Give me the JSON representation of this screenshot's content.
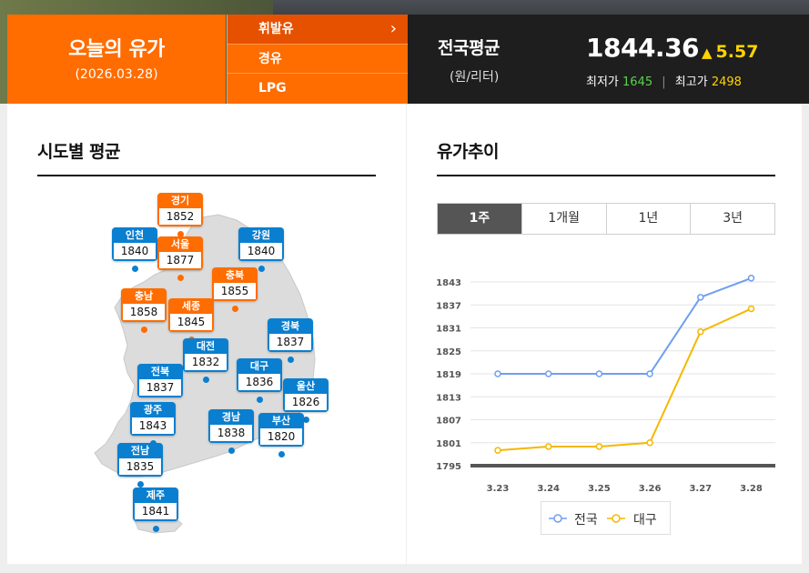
{
  "today": {
    "title": "오늘의 유가",
    "date": "(2026.03.28)"
  },
  "fuel_tabs": [
    {
      "label": "휘발유",
      "active": true
    },
    {
      "label": "경유",
      "active": false
    },
    {
      "label": "LPG",
      "active": false
    }
  ],
  "fuel_chevron": "›",
  "national": {
    "title": "전국평균",
    "unit": "(원/리터)",
    "price": "1844.36",
    "change_icon": "up-triangle-icon",
    "change": "5.57",
    "min_label": "최저가",
    "min_value": "1645",
    "max_label": "최고가",
    "max_value": "2498"
  },
  "regional": {
    "title": "시도별 평균",
    "regions": [
      {
        "name": "경기",
        "value": "1852",
        "color": "orange"
      },
      {
        "name": "인천",
        "value": "1840",
        "color": "blue"
      },
      {
        "name": "서울",
        "value": "1877",
        "color": "orange"
      },
      {
        "name": "강원",
        "value": "1840",
        "color": "blue"
      },
      {
        "name": "충북",
        "value": "1855",
        "color": "orange"
      },
      {
        "name": "충남",
        "value": "1858",
        "color": "orange"
      },
      {
        "name": "세종",
        "value": "1845",
        "color": "orange"
      },
      {
        "name": "경북",
        "value": "1837",
        "color": "blue"
      },
      {
        "name": "대전",
        "value": "1832",
        "color": "blue"
      },
      {
        "name": "전북",
        "value": "1837",
        "color": "blue"
      },
      {
        "name": "대구",
        "value": "1836",
        "color": "blue"
      },
      {
        "name": "울산",
        "value": "1826",
        "color": "blue"
      },
      {
        "name": "광주",
        "value": "1843",
        "color": "blue"
      },
      {
        "name": "경남",
        "value": "1838",
        "color": "blue"
      },
      {
        "name": "부산",
        "value": "1820",
        "color": "blue"
      },
      {
        "name": "전남",
        "value": "1835",
        "color": "blue"
      },
      {
        "name": "제주",
        "value": "1841",
        "color": "blue"
      }
    ]
  },
  "trend": {
    "title": "유가추이",
    "periods": [
      {
        "label": "1주",
        "active": true
      },
      {
        "label": "1개월",
        "active": false
      },
      {
        "label": "1년",
        "active": false
      },
      {
        "label": "3년",
        "active": false
      }
    ]
  },
  "colors": {
    "accent": "#ff6c00",
    "blue": "#0a7fd0",
    "nat_series": "#6f9ef0",
    "daegu_series": "#f5b800"
  },
  "chart_data": {
    "type": "line",
    "x": [
      "3.23",
      "3.24",
      "3.25",
      "3.26",
      "3.27",
      "3.28"
    ],
    "series": [
      {
        "name": "전국",
        "values": [
          1819,
          1819,
          1819,
          1819,
          1839,
          1844
        ]
      },
      {
        "name": "대구",
        "values": [
          1799,
          1800,
          1800,
          1801,
          1830,
          1836
        ]
      }
    ],
    "ylim": [
      1795,
      1843
    ],
    "yticks": [
      "1843",
      "1837",
      "1831",
      "1825",
      "1819",
      "1813",
      "1807",
      "1801",
      "1795"
    ],
    "grid": true,
    "legend": "bottom"
  }
}
